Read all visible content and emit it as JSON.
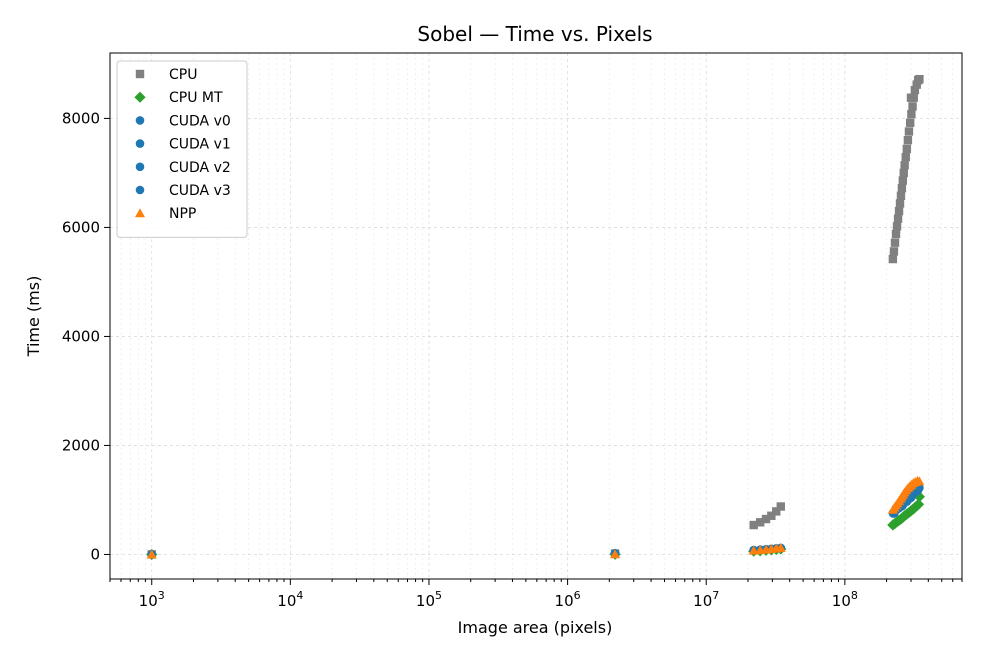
{
  "chart_data": {
    "type": "scatter",
    "title": "Sobel — Time vs. Pixels",
    "xlabel": "Image area (pixels)",
    "ylabel": "Time (ms)",
    "xscale": "log",
    "xlim": [
      500,
      700000000
    ],
    "ylim": [
      -450,
      9200
    ],
    "grid": true,
    "legend_position": "upper left",
    "x_ticks": [
      {
        "value": 1000,
        "base": "10",
        "exp": "3"
      },
      {
        "value": 10000,
        "base": "10",
        "exp": "4"
      },
      {
        "value": 100000,
        "base": "10",
        "exp": "5"
      },
      {
        "value": 1000000,
        "base": "10",
        "exp": "6"
      },
      {
        "value": 10000000,
        "base": "10",
        "exp": "7"
      },
      {
        "value": 100000000,
        "base": "10",
        "exp": "8"
      }
    ],
    "y_ticks": [
      0,
      2000,
      4000,
      6000,
      8000
    ],
    "y_tick_labels": [
      "0",
      "2000",
      "4000",
      "6000",
      "8000"
    ],
    "series": [
      {
        "name": "CPU",
        "marker": "square",
        "color": "#808080",
        "points": [
          [
            1000,
            1
          ],
          [
            2200000,
            17
          ],
          [
            22000000,
            540
          ],
          [
            24500000,
            590
          ],
          [
            27000000,
            650
          ],
          [
            29500000,
            710
          ],
          [
            32000000,
            790
          ],
          [
            34500000,
            880
          ],
          [
            222000000,
            5420
          ],
          [
            226000000,
            5560
          ],
          [
            230000000,
            5720
          ],
          [
            234000000,
            5880
          ],
          [
            238000000,
            6020
          ],
          [
            242000000,
            6160
          ],
          [
            246000000,
            6300
          ],
          [
            250000000,
            6440
          ],
          [
            254000000,
            6580
          ],
          [
            258000000,
            6720
          ],
          [
            262000000,
            6860
          ],
          [
            266000000,
            7000
          ],
          [
            270000000,
            7140
          ],
          [
            275000000,
            7290
          ],
          [
            280000000,
            7440
          ],
          [
            285000000,
            7600
          ],
          [
            290000000,
            7760
          ],
          [
            296000000,
            7920
          ],
          [
            302000000,
            8080
          ],
          [
            308000000,
            8220
          ],
          [
            300000000,
            8380
          ],
          [
            314000000,
            8380
          ],
          [
            320000000,
            8520
          ],
          [
            330000000,
            8620
          ],
          [
            338000000,
            8700
          ],
          [
            345000000,
            8720
          ]
        ]
      },
      {
        "name": "CPU MT",
        "marker": "diamond",
        "color": "#2ca02c",
        "points": [
          [
            1000,
            0
          ],
          [
            2200000,
            4
          ],
          [
            22000000,
            60
          ],
          [
            24500000,
            68
          ],
          [
            27000000,
            76
          ],
          [
            29500000,
            84
          ],
          [
            32000000,
            92
          ],
          [
            34500000,
            100
          ],
          [
            222000000,
            540
          ],
          [
            230000000,
            570
          ],
          [
            238000000,
            600
          ],
          [
            246000000,
            625
          ],
          [
            254000000,
            650
          ],
          [
            262000000,
            680
          ],
          [
            270000000,
            710
          ],
          [
            280000000,
            740
          ],
          [
            290000000,
            770
          ],
          [
            300000000,
            800
          ],
          [
            310000000,
            830
          ],
          [
            320000000,
            860
          ],
          [
            330000000,
            890
          ],
          [
            340000000,
            920
          ],
          [
            345000000,
            1060
          ]
        ]
      },
      {
        "name": "CUDA v0",
        "marker": "circle",
        "color": "#1f77b4",
        "points": [
          [
            1000,
            2
          ],
          [
            2200000,
            22
          ],
          [
            22000000,
            80
          ],
          [
            24500000,
            88
          ],
          [
            27000000,
            96
          ],
          [
            29500000,
            104
          ],
          [
            32000000,
            112
          ],
          [
            34500000,
            120
          ],
          [
            222000000,
            760
          ],
          [
            232000000,
            800
          ],
          [
            242000000,
            840
          ],
          [
            252000000,
            880
          ],
          [
            262000000,
            920
          ],
          [
            272000000,
            960
          ],
          [
            284000000,
            1000
          ],
          [
            296000000,
            1050
          ],
          [
            308000000,
            1100
          ],
          [
            320000000,
            1150
          ],
          [
            335000000,
            1190
          ],
          [
            345000000,
            1220
          ]
        ]
      },
      {
        "name": "CUDA v1",
        "marker": "circle",
        "color": "#1f77b4",
        "points": [
          [
            1000,
            1
          ],
          [
            2200000,
            20
          ],
          [
            22000000,
            78
          ],
          [
            27000000,
            94
          ],
          [
            32000000,
            110
          ],
          [
            34500000,
            118
          ],
          [
            226000000,
            770
          ],
          [
            246000000,
            850
          ],
          [
            266000000,
            930
          ],
          [
            288000000,
            1010
          ],
          [
            310000000,
            1100
          ],
          [
            340000000,
            1200
          ]
        ]
      },
      {
        "name": "CUDA v2",
        "marker": "circle",
        "color": "#1f77b4",
        "points": [
          [
            1000,
            1
          ],
          [
            2200000,
            19
          ],
          [
            22000000,
            76
          ],
          [
            29500000,
            100
          ],
          [
            34500000,
            116
          ],
          [
            228000000,
            760
          ],
          [
            256000000,
            880
          ],
          [
            280000000,
            970
          ],
          [
            304000000,
            1070
          ],
          [
            330000000,
            1160
          ]
        ]
      },
      {
        "name": "CUDA v3",
        "marker": "circle",
        "color": "#1f77b4",
        "points": [
          [
            1000,
            1
          ],
          [
            2200000,
            18
          ],
          [
            24500000,
            84
          ],
          [
            32000000,
            108
          ],
          [
            224000000,
            750
          ],
          [
            260000000,
            890
          ],
          [
            300000000,
            1040
          ],
          [
            336000000,
            1170
          ]
        ]
      },
      {
        "name": "NPP",
        "marker": "triangle",
        "color": "#ff7f0e",
        "points": [
          [
            1000,
            0
          ],
          [
            2200000,
            3
          ],
          [
            22000000,
            70
          ],
          [
            24500000,
            80
          ],
          [
            27000000,
            90
          ],
          [
            29500000,
            100
          ],
          [
            32000000,
            110
          ],
          [
            34500000,
            120
          ],
          [
            222000000,
            820
          ],
          [
            228000000,
            860
          ],
          [
            234000000,
            900
          ],
          [
            240000000,
            940
          ],
          [
            246000000,
            980
          ],
          [
            252000000,
            1020
          ],
          [
            258000000,
            1060
          ],
          [
            264000000,
            1100
          ],
          [
            270000000,
            1140
          ],
          [
            278000000,
            1180
          ],
          [
            286000000,
            1220
          ],
          [
            294000000,
            1250
          ],
          [
            302000000,
            1280
          ],
          [
            312000000,
            1310
          ],
          [
            322000000,
            1330
          ],
          [
            334000000,
            1350
          ],
          [
            345000000,
            1340
          ]
        ]
      }
    ]
  }
}
